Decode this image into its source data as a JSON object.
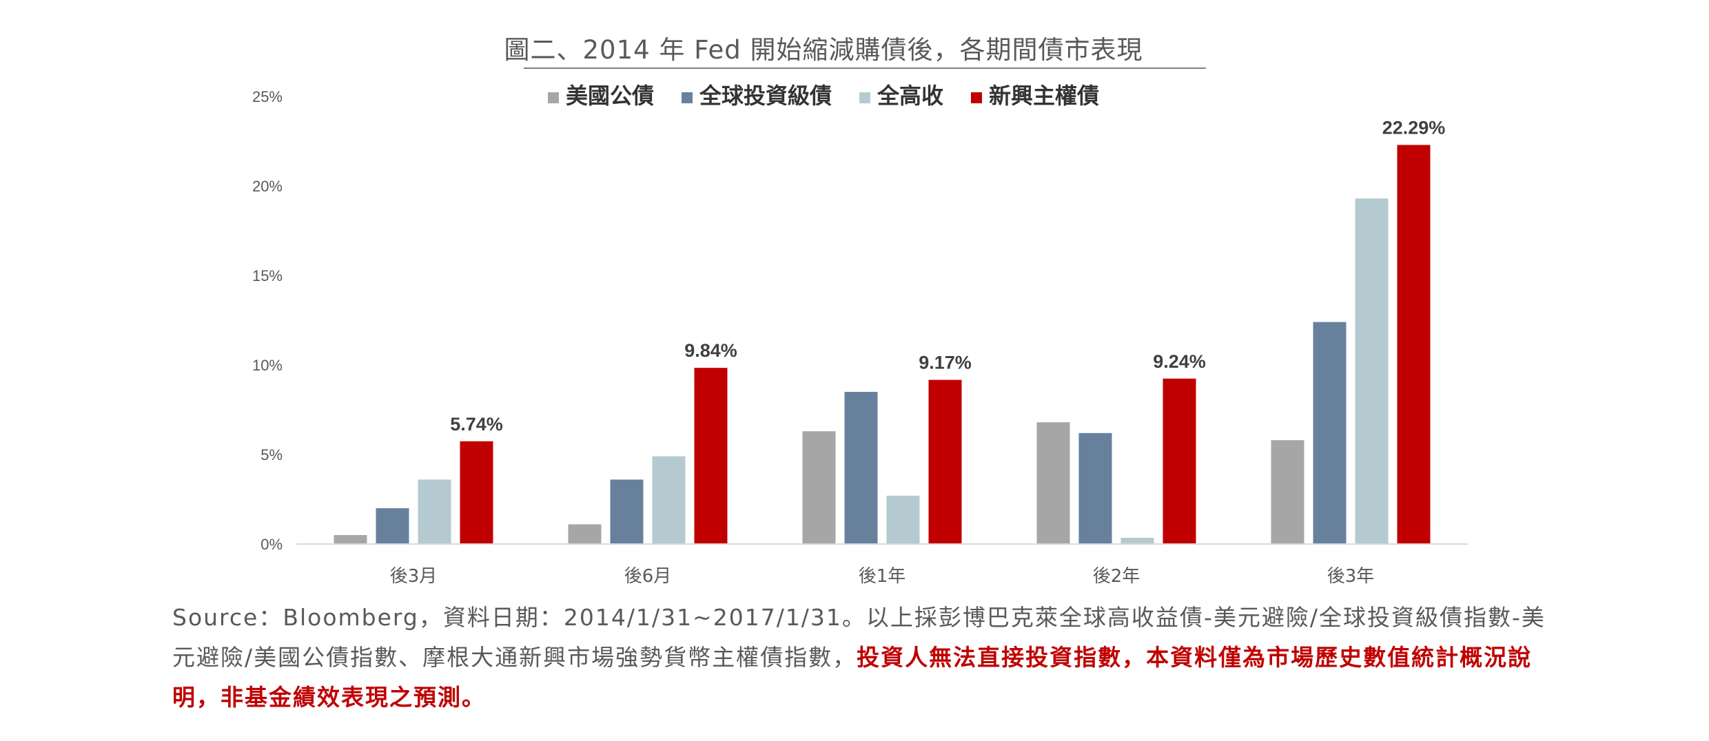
{
  "chart_data": {
    "type": "bar",
    "title": "圖二、2014 年 Fed 開始縮減購債後，各期間債市表現",
    "categories": [
      "後3月",
      "後6月",
      "後1年",
      "後2年",
      "後3年"
    ],
    "series": [
      {
        "name": "美國公債",
        "color": "#a6a6a6",
        "values": [
          0.5,
          1.1,
          6.3,
          6.8,
          5.8
        ]
      },
      {
        "name": "全球投資級債",
        "color": "#67819d",
        "values": [
          2.0,
          3.6,
          8.5,
          6.2,
          12.4
        ]
      },
      {
        "name": "全高收",
        "color": "#b5cad0",
        "values": [
          3.6,
          4.9,
          2.7,
          0.35,
          19.3
        ]
      },
      {
        "name": "新興主權債",
        "color": "#c00000",
        "values": [
          5.74,
          9.84,
          9.17,
          9.24,
          22.29
        ]
      }
    ],
    "data_labels": {
      "series": "新興主權債",
      "labels": [
        "5.74%",
        "9.84%",
        "9.17%",
        "9.24%",
        "22.29%"
      ]
    },
    "ylim": [
      0,
      25
    ],
    "yticks": [
      0,
      5,
      10,
      15,
      20,
      25
    ],
    "ytick_labels": [
      "0%",
      "5%",
      "10%",
      "15%",
      "20%",
      "25%"
    ],
    "legend_position": "top-center",
    "grid": false
  },
  "note": {
    "part1": "Source：Bloomberg，資料日期：2014/1/31~2017/1/31。以上採彭博巴克萊全球高收益債-美元避險/全球投資級債指數-美元避險/美國公債指數、摩根大通新興市場強勢貨幣主權債指數，",
    "part2": "投資人無法直接投資指數，本資料僅為市場歷史數值統計概況說明，非基金績效表現之預測。"
  }
}
